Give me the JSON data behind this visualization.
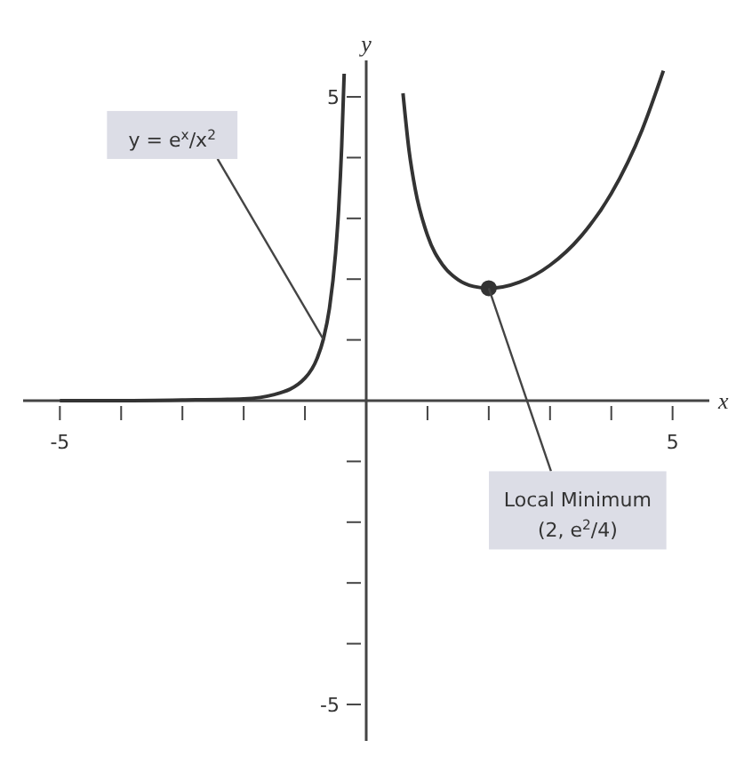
{
  "chart_data": {
    "type": "line",
    "xlabel": "x",
    "ylabel": "y",
    "xlim": [
      -5.6,
      5.6
    ],
    "ylim": [
      -5.6,
      5.6
    ],
    "xticks": [
      {
        "value": -5,
        "label": "-5"
      },
      {
        "value": -4,
        "label": null
      },
      {
        "value": -3,
        "label": null
      },
      {
        "value": -2,
        "label": null
      },
      {
        "value": -1,
        "label": null
      },
      {
        "value": 1,
        "label": null
      },
      {
        "value": 2,
        "label": null
      },
      {
        "value": 3,
        "label": null
      },
      {
        "value": 4,
        "label": null
      },
      {
        "value": 5,
        "label": "5"
      }
    ],
    "yticks": [
      {
        "value": -5,
        "label": "-5"
      },
      {
        "value": -4,
        "label": null
      },
      {
        "value": -3,
        "label": null
      },
      {
        "value": -2,
        "label": null
      },
      {
        "value": -1,
        "label": null
      },
      {
        "value": 1,
        "label": null
      },
      {
        "value": 2,
        "label": null
      },
      {
        "value": 3,
        "label": null
      },
      {
        "value": 4,
        "label": null
      },
      {
        "value": 5,
        "label": "5"
      }
    ],
    "line_style": "solid",
    "series": [
      {
        "color": "#333333",
        "x": [
          -5,
          -4,
          -3,
          -2,
          -1.5,
          -1,
          -0.8,
          -0.7,
          -0.6,
          -0.5,
          -0.45,
          -0.4,
          -0.36
        ],
        "values": [
          0,
          0,
          0.01,
          0.03,
          0.1,
          0.37,
          0.7,
          1.01,
          1.52,
          2.43,
          3.15,
          4.19,
          5.38
        ]
      },
      {
        "color": "#333333",
        "x": [
          0.6,
          0.7,
          0.8,
          1,
          1.25,
          1.5,
          1.75,
          2,
          2.5,
          3,
          3.5,
          4,
          4.5,
          4.85
        ],
        "values": [
          5.06,
          4.11,
          3.48,
          2.72,
          2.23,
          1.99,
          1.88,
          1.85,
          1.95,
          2.23,
          2.7,
          3.41,
          4.45,
          5.43
        ]
      },
      {
        "type": "scatter",
        "color": "#333333",
        "x": [
          2
        ],
        "values": [
          1.85
        ]
      }
    ],
    "annotations": [
      {
        "text": "y = e$^{x}$/x$^{2}$",
        "x": -0.7,
        "y": 1.01
      },
      {
        "text": "Local Minimum\n(2, e$^{2}$/4)",
        "x": 2,
        "y": 1.85
      }
    ]
  }
}
